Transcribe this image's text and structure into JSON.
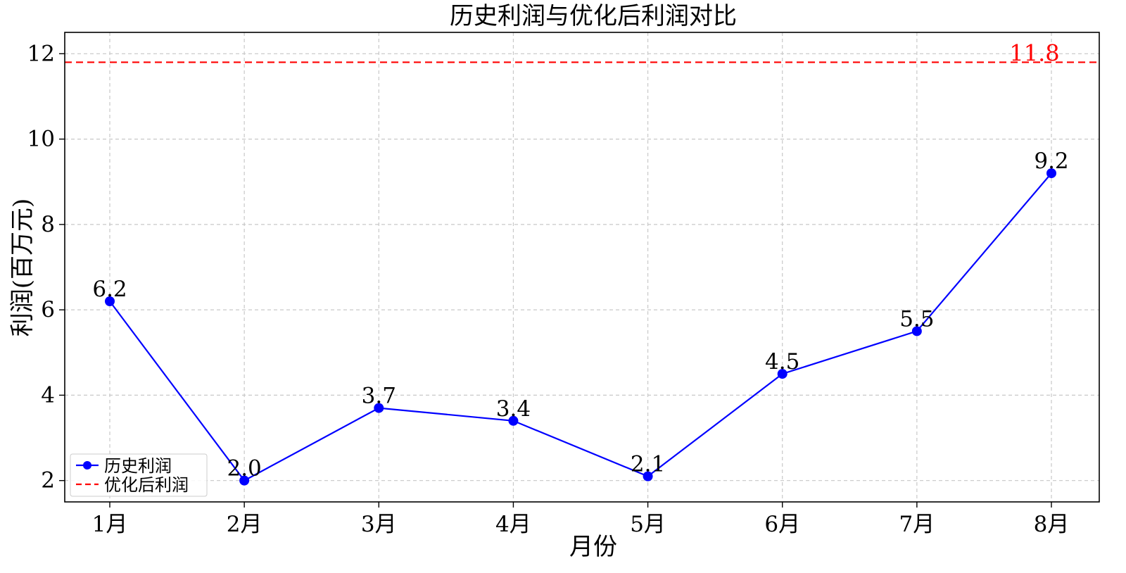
{
  "chart_data": {
    "type": "line",
    "title": "历史利润与优化后利润对比",
    "xlabel": "月份",
    "ylabel": "利润(百万元)",
    "categories": [
      "1月",
      "2月",
      "3月",
      "4月",
      "5月",
      "6月",
      "7月",
      "8月"
    ],
    "series": [
      {
        "name": "历史利润",
        "values": [
          6.2,
          2.0,
          3.7,
          3.4,
          2.1,
          4.5,
          5.5,
          9.2
        ],
        "color": "#0000ff",
        "marker": "circle"
      }
    ],
    "reference_line": {
      "name": "优化后利润",
      "value": 11.8,
      "label": "11.8",
      "color": "#ff0000",
      "style": "dashed"
    },
    "ylim": [
      1.5,
      12.5
    ],
    "yticks": [
      2,
      4,
      6,
      8,
      10,
      12
    ],
    "grid": true,
    "legend": "bottom-left"
  }
}
